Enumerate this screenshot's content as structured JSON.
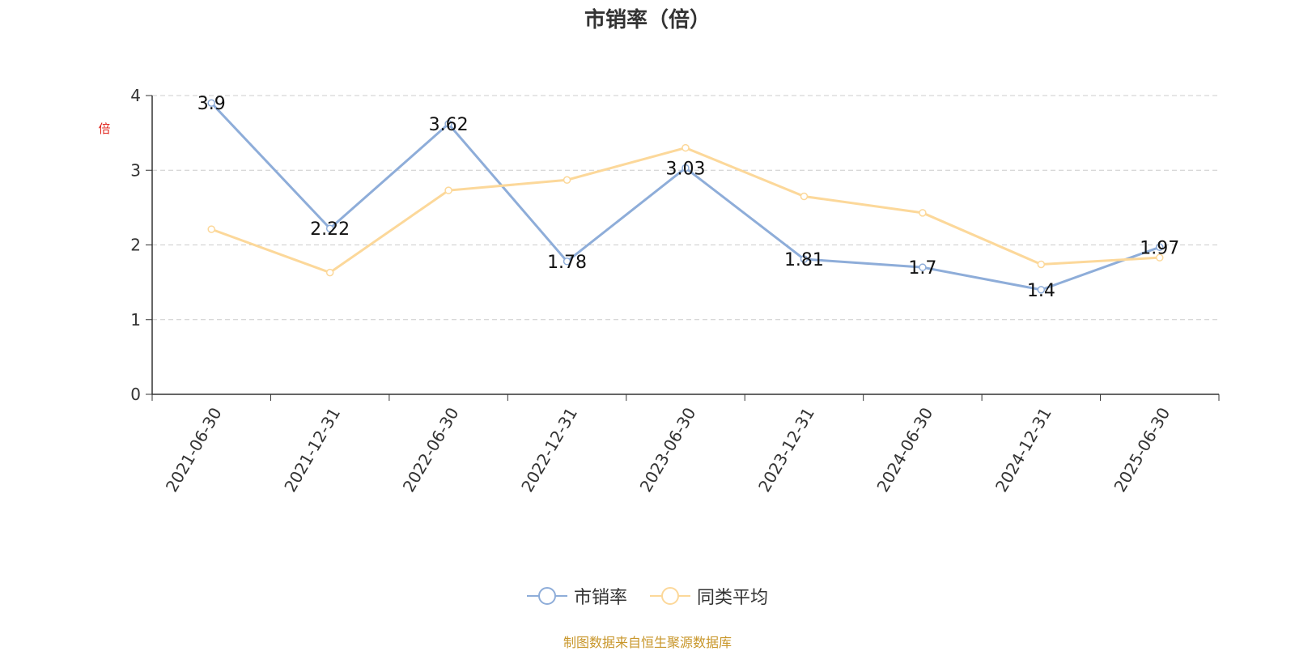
{
  "title": "市销率（倍）",
  "source": "制图数据来自恒生聚源数据库",
  "chart_data": {
    "type": "line",
    "title": "市销率（倍）",
    "ylabel": "倍",
    "xlabel": "",
    "ylim": [
      0,
      4
    ],
    "yticks": [
      0,
      1,
      2,
      3,
      4
    ],
    "grid": true,
    "legend_position": "bottom",
    "categories": [
      "2021-06-30",
      "2021-12-31",
      "2022-06-30",
      "2022-12-31",
      "2023-06-30",
      "2023-12-31",
      "2024-06-30",
      "2024-12-31",
      "2025-06-30"
    ],
    "series": [
      {
        "name": "市销率",
        "color": "#8eadd9",
        "show_labels": true,
        "values": [
          3.9,
          2.22,
          3.62,
          1.78,
          3.03,
          1.81,
          1.7,
          1.4,
          1.97
        ]
      },
      {
        "name": "同类平均",
        "color": "#fcd89a",
        "show_labels": false,
        "values": [
          2.21,
          1.63,
          2.73,
          2.87,
          3.3,
          2.65,
          2.43,
          1.74,
          1.83
        ]
      }
    ]
  }
}
